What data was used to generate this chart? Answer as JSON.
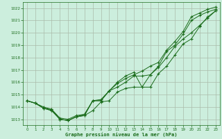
{
  "title": "Graphe pression niveau de la mer (hPa)",
  "bg_color": "#cceedd",
  "grid_color": "#aabbaa",
  "line_color": "#1a6b1a",
  "xlim": [
    -0.5,
    23.5
  ],
  "ylim": [
    1012.5,
    1022.5
  ],
  "yticks": [
    1013,
    1014,
    1015,
    1016,
    1017,
    1018,
    1019,
    1020,
    1021,
    1022
  ],
  "xticks": [
    0,
    1,
    2,
    3,
    4,
    5,
    6,
    7,
    8,
    9,
    10,
    11,
    12,
    13,
    14,
    15,
    16,
    17,
    18,
    19,
    20,
    21,
    22,
    23
  ],
  "line1": [
    1014.5,
    1014.3,
    1013.9,
    1013.7,
    1013.0,
    1012.9,
    1013.2,
    1013.3,
    1013.7,
    1014.4,
    1014.5,
    1015.2,
    1015.5,
    1015.6,
    1015.6,
    1016.6,
    1017.3,
    1018.5,
    1019.0,
    1019.9,
    1021.0,
    1021.4,
    1021.7,
    1021.9
  ],
  "line2": [
    1014.5,
    1014.3,
    1014.0,
    1013.8,
    1013.1,
    1013.0,
    1013.3,
    1013.4,
    1014.5,
    1014.6,
    1015.3,
    1015.9,
    1016.3,
    1016.6,
    1016.9,
    1017.3,
    1017.6,
    1018.6,
    1019.3,
    1020.1,
    1021.3,
    1021.6,
    1021.9,
    1022.1
  ],
  "line3": [
    1014.5,
    1014.3,
    1013.9,
    1013.8,
    1013.0,
    1012.9,
    1013.2,
    1013.4,
    1014.5,
    1014.5,
    1015.3,
    1016.0,
    1016.5,
    1016.8,
    1015.6,
    1015.6,
    1016.7,
    1017.3,
    1018.2,
    1019.1,
    1019.5,
    1020.5,
    1021.3,
    1021.8
  ],
  "line4": [
    1014.5,
    1014.3,
    1013.9,
    1013.7,
    1013.0,
    1012.9,
    1013.2,
    1013.3,
    1014.5,
    1014.5,
    1015.3,
    1015.6,
    1016.0,
    1016.5,
    1016.5,
    1016.6,
    1017.2,
    1018.0,
    1018.9,
    1019.5,
    1020.0,
    1020.6,
    1021.2,
    1021.8
  ]
}
